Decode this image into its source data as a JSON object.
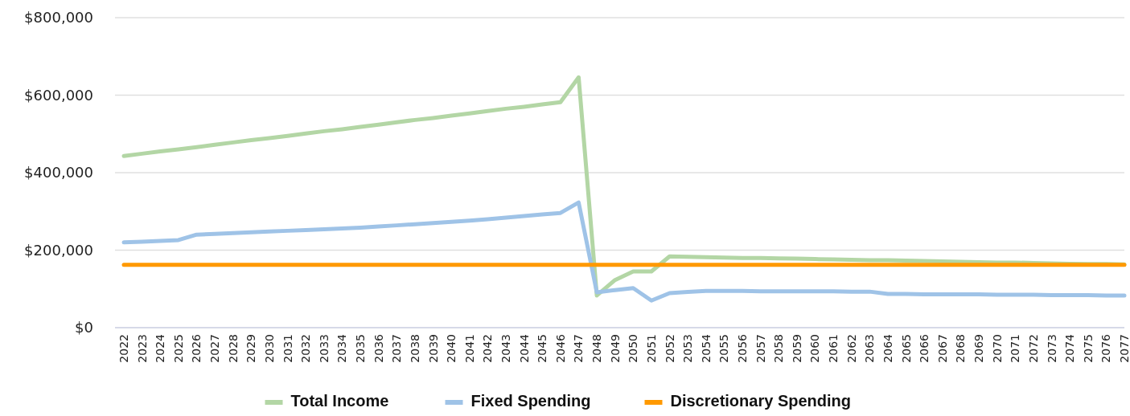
{
  "chart_data": {
    "type": "line",
    "categories": [
      "2022",
      "2023",
      "2024",
      "2025",
      "2026",
      "2027",
      "2028",
      "2029",
      "2030",
      "2031",
      "2032",
      "2033",
      "2034",
      "2035",
      "2036",
      "2037",
      "2038",
      "2039",
      "2040",
      "2041",
      "2042",
      "2043",
      "2044",
      "2045",
      "2046",
      "2047",
      "2048",
      "2049",
      "2050",
      "2051",
      "2052",
      "2053",
      "2054",
      "2055",
      "2056",
      "2057",
      "2058",
      "2059",
      "2060",
      "2061",
      "2062",
      "2063",
      "2064",
      "2065",
      "2066",
      "2067",
      "2068",
      "2069",
      "2070",
      "2071",
      "2072",
      "2073",
      "2074",
      "2075",
      "2076",
      "2077"
    ],
    "series": [
      {
        "name": "Total Income",
        "color": "#b3d6a5",
        "values": [
          443000,
          449000,
          455000,
          460000,
          466000,
          472000,
          478000,
          484000,
          489000,
          495000,
          501000,
          507000,
          512000,
          518000,
          524000,
          530000,
          536000,
          541000,
          547000,
          553000,
          559000,
          565000,
          570000,
          576000,
          582000,
          646000,
          83000,
          123000,
          145000,
          145000,
          184000,
          183000,
          182000,
          181000,
          180000,
          180000,
          179000,
          178000,
          177000,
          176000,
          175000,
          174000,
          174000,
          173000,
          172000,
          171000,
          170000,
          169000,
          168000,
          168000,
          167000,
          166000,
          165000,
          164000,
          164000,
          163000
        ]
      },
      {
        "name": "Fixed Spending",
        "color": "#9fc3e7",
        "values": [
          220000,
          222000,
          224000,
          226000,
          240000,
          242000,
          244000,
          246000,
          248000,
          250000,
          252000,
          254000,
          256000,
          258000,
          261000,
          264000,
          267000,
          270000,
          273000,
          276000,
          280000,
          284000,
          288000,
          292000,
          296000,
          323000,
          91000,
          97000,
          102000,
          70000,
          89000,
          92000,
          95000,
          95000,
          95000,
          94000,
          94000,
          94000,
          94000,
          94000,
          93000,
          93000,
          87000,
          87000,
          86000,
          86000,
          86000,
          86000,
          85000,
          85000,
          85000,
          84000,
          84000,
          84000,
          83000,
          83000
        ]
      },
      {
        "name": "Discretionary Spending",
        "color": "#ff9900",
        "values": [
          162000,
          162000,
          162000,
          162000,
          162000,
          162000,
          162000,
          162000,
          162000,
          162000,
          162000,
          162000,
          162000,
          162000,
          162000,
          162000,
          162000,
          162000,
          162000,
          162000,
          162000,
          162000,
          162000,
          162000,
          162000,
          162000,
          162000,
          162000,
          162000,
          162000,
          162000,
          162000,
          162000,
          162000,
          162000,
          162000,
          162000,
          162000,
          162000,
          162000,
          162000,
          162000,
          162000,
          162000,
          162000,
          162000,
          162000,
          162000,
          162000,
          162000,
          162000,
          162000,
          162000,
          162000,
          162000,
          162000
        ]
      }
    ],
    "ylim": [
      0,
      800000
    ],
    "yticks": [
      {
        "value": 0,
        "label": "$0"
      },
      {
        "value": 200000,
        "label": "$200,000"
      },
      {
        "value": 400000,
        "label": "$400,000"
      },
      {
        "value": 600000,
        "label": "$600,000"
      },
      {
        "value": 800000,
        "label": "$800,000"
      }
    ],
    "grid": "y",
    "legend": "bottom",
    "marker": "none",
    "line_style": "solid"
  }
}
